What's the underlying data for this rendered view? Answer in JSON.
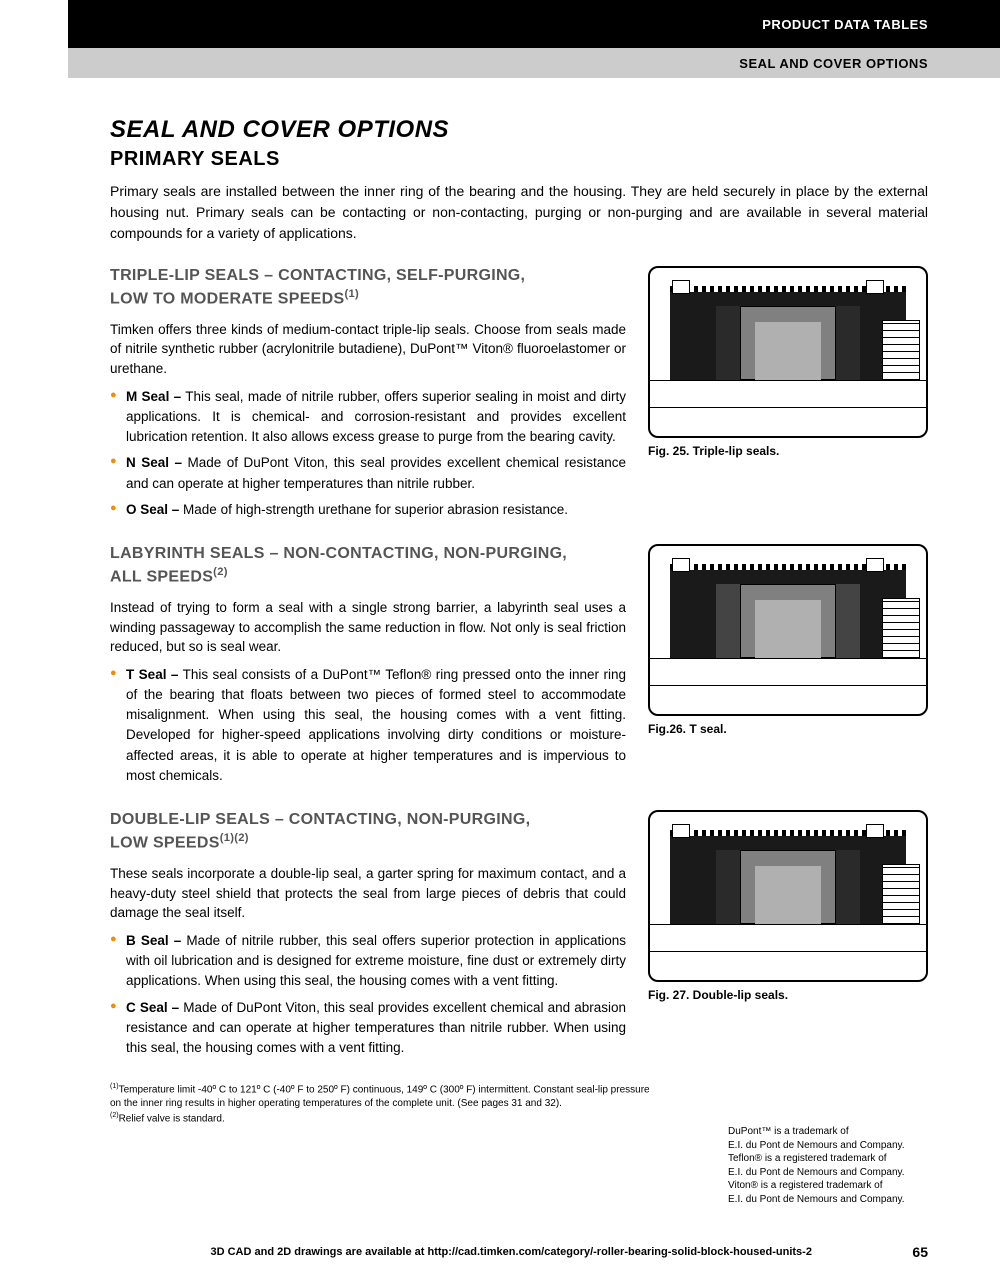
{
  "header": {
    "black_text": "PRODUCT DATA TABLES",
    "gray_text": "SEAL AND COVER OPTIONS"
  },
  "title": "SEAL AND COVER OPTIONS",
  "subtitle": "PRIMARY SEALS",
  "intro": "Primary seals are installed between the inner ring of the bearing and the housing. They are held securely in place by the external housing nut. Primary seals can be contacting or non-contacting, purging or non-purging and are available in several material compounds for a variety of applications.",
  "sections": [
    {
      "heading_line1": "TRIPLE-LIP SEALS – CONTACTING, SELF-PURGING,",
      "heading_line2": "LOW TO MODERATE SPEEDS",
      "heading_sup": "(1)",
      "para": "Timken offers three kinds of medium-contact triple-lip seals. Choose from seals made of nitrile synthetic rubber (acrylonitrile butadiene), DuPont™ Viton® fluoroelastomer or urethane.",
      "bullets": [
        {
          "label": "M Seal –",
          "text": " This seal, made of nitrile rubber, offers superior sealing in moist and dirty applications. It is chemical- and corrosion-resistant and provides excellent lubrication retention. It also allows excess grease to purge from the bearing cavity."
        },
        {
          "label": "N Seal –",
          "text": " Made of DuPont Viton, this seal provides excellent chemical resistance and can operate at higher temperatures than nitrile rubber."
        },
        {
          "label": "O Seal –",
          "text": " Made of high-strength urethane for superior abrasion resistance."
        }
      ],
      "caption": "Fig. 25. Triple-lip seals."
    },
    {
      "heading_line1": "LABYRINTH SEALS – NON-CONTACTING, NON-PURGING,",
      "heading_line2": "ALL SPEEDS",
      "heading_sup": "(2)",
      "para": "Instead of trying to form a seal with a single strong barrier, a labyrinth seal uses a winding passageway to accomplish the same reduction in flow. Not only is seal friction reduced, but so is seal wear.",
      "bullets": [
        {
          "label": "T Seal –",
          "text": " This seal consists of a DuPont™ Teflon® ring pressed onto the inner ring of the bearing that floats between two pieces of formed steel to accommodate misalignment. When using this seal, the housing comes with a vent fitting. Developed for higher-speed applications involving dirty conditions or moisture-affected areas, it is able to operate at higher temperatures and is impervious to most chemicals."
        }
      ],
      "caption": "Fig.26. T seal."
    },
    {
      "heading_line1": "DOUBLE-LIP SEALS – CONTACTING, NON-PURGING,",
      "heading_line2": "LOW SPEEDS",
      "heading_sup": "(1)(2)",
      "para": "These seals incorporate a double-lip seal, a garter spring for maximum contact, and a heavy-duty steel shield that protects the seal from large pieces of debris that could damage the seal itself.",
      "bullets": [
        {
          "label": "B Seal –",
          "text": " Made of nitrile rubber, this seal offers superior protection in applications with oil lubrication and is designed for extreme moisture, fine dust or extremely dirty applications. When using this seal, the housing comes with a vent fitting."
        },
        {
          "label": "C Seal –",
          "text": " Made of DuPont Viton, this seal provides excellent chemical and abrasion resistance and can operate at higher temperatures than nitrile rubber. When using this seal, the housing comes with a vent fitting."
        }
      ],
      "caption": "Fig. 27. Double-lip seals."
    }
  ],
  "footnotes": {
    "f1_sup": "(1)",
    "f1": "Temperature limit -40º C to 121º C (-40º F to 250º F) continuous, 149º C (300º F) intermittent. Constant seal-lip pressure on the inner ring results in higher operating temperatures of the complete unit. (See pages 31 and 32).",
    "f2_sup": "(2)",
    "f2": "Relief valve is standard."
  },
  "trademarks": "DuPont™ is a trademark of\nE.I. du Pont de Nemours and Company.\nTeflon® is a registered trademark of\nE.I. du Pont de Nemours and Company.\nViton® is a registered trademark of\nE.I. du Pont de Nemours and Company.",
  "footer_text": "3D CAD and 2D drawings are available at http://cad.timken.com/category/-roller-bearing-solid-block-housed-units-2",
  "page_num": "65"
}
